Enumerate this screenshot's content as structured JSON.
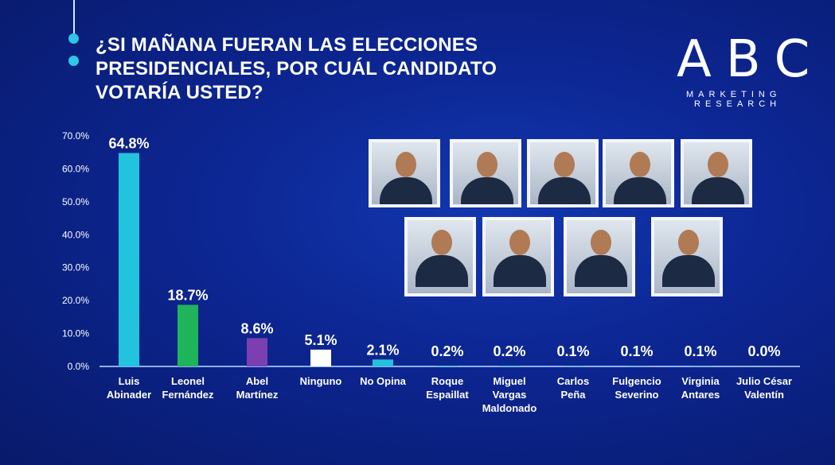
{
  "title": [
    "¿SI MAÑANA FUERAN LAS ELECCIONES",
    "PRESIDENCIALES, POR  CUÁL CANDIDATO",
    "VOTARÍA USTED?"
  ],
  "logo": {
    "main": "ABC",
    "line1": "MARKETING",
    "line2": "RESEARCH"
  },
  "chart_data": {
    "type": "bar",
    "title": "¿SI MAÑANA FUERAN LAS ELECCIONES PRESIDENCIALES, POR  CUÁL CANDIDATO VOTARÍA USTED?",
    "categories": [
      [
        "Luis",
        "Abinader"
      ],
      [
        "Leonel",
        "Fernández"
      ],
      [
        "Abel",
        "Martínez"
      ],
      [
        "Ninguno"
      ],
      [
        "No Opina"
      ],
      [
        "Roque",
        "Espaillat"
      ],
      [
        "Miguel",
        "Vargas",
        "Maldonado"
      ],
      [
        "Carlos",
        "Peña"
      ],
      [
        "Fulgencio",
        "Severino"
      ],
      [
        "Virginia",
        "Antares"
      ],
      [
        "Julio César",
        "Valentín"
      ]
    ],
    "values": [
      64.8,
      18.7,
      8.6,
      5.1,
      2.1,
      0.2,
      0.2,
      0.1,
      0.1,
      0.1,
      0.0
    ],
    "data_labels": [
      "64.8%",
      "18.7%",
      "8.6%",
      "5.1%",
      "2.1%",
      "0.2%",
      "0.2%",
      "0.1%",
      "0.1%",
      "0.1%",
      "0.0%"
    ],
    "colors": [
      "#22c3dc",
      "#1fb45a",
      "#7b3fb0",
      "#ffffff",
      "#22c3dc",
      "#22c3dc",
      "#22c3dc",
      "#22c3dc",
      "#22c3dc",
      "#22c3dc",
      "#22c3dc"
    ],
    "yticks": [
      "0.0%",
      "10.0%",
      "20.0%",
      "30.0%",
      "40.0%",
      "50.0%",
      "60.0%",
      "70.0%"
    ],
    "ylim": [
      0,
      70
    ],
    "grid": false,
    "xlabel": "",
    "ylabel": ""
  },
  "photos": [
    "candidate-photo-1",
    "candidate-photo-2",
    "candidate-photo-3",
    "candidate-photo-4",
    "candidate-photo-5",
    "candidate-photo-6",
    "candidate-photo-7",
    "candidate-photo-8",
    "candidate-photo-9"
  ]
}
